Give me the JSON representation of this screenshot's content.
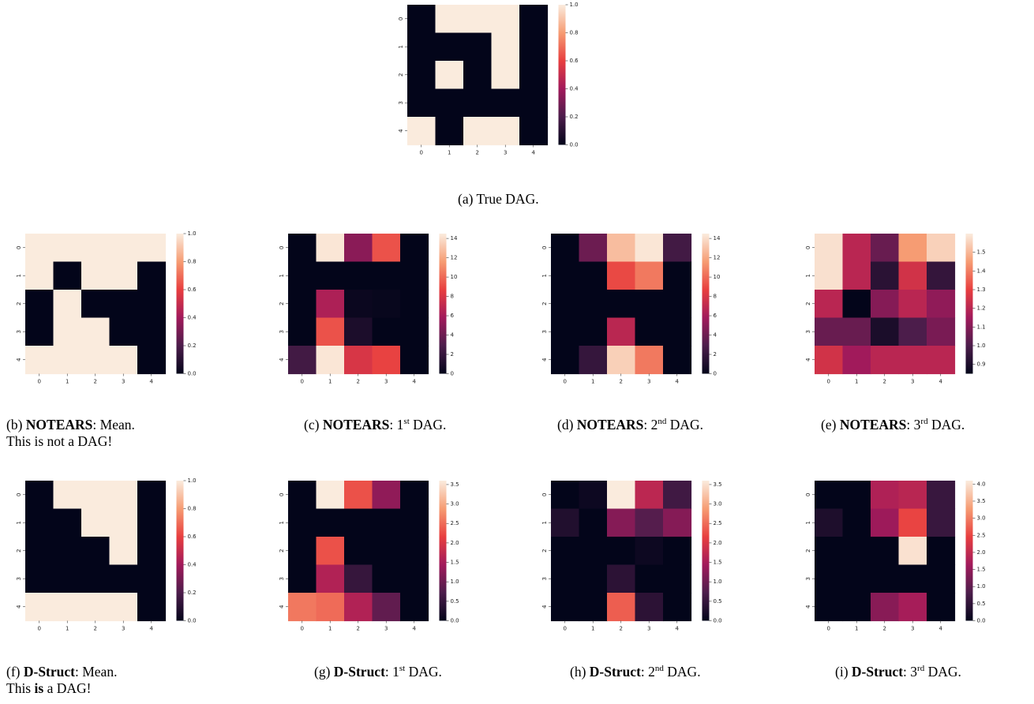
{
  "chart_data": [
    {
      "id": "a",
      "type": "heatmap",
      "caption": {
        "label": "(a)",
        "text": "True DAG."
      },
      "x": [
        "0",
        "1",
        "2",
        "3",
        "4"
      ],
      "y": [
        "0",
        "1",
        "2",
        "3",
        "4"
      ],
      "values": [
        [
          0,
          1,
          1,
          1,
          0
        ],
        [
          0,
          0,
          0,
          1,
          0
        ],
        [
          0,
          1,
          0,
          1,
          0
        ],
        [
          0,
          0,
          0,
          0,
          0
        ],
        [
          1,
          0,
          1,
          1,
          0
        ]
      ],
      "colorbar": {
        "min": 0,
        "max": 1,
        "ticks": [
          "0.0",
          "0.2",
          "0.4",
          "0.6",
          "0.8",
          "1.0"
        ]
      }
    },
    {
      "id": "b",
      "type": "heatmap",
      "caption": {
        "label": "(b)",
        "method": "NOTEARS",
        "text": ": Mean.",
        "line2": "This is not a DAG!"
      },
      "x": [
        "0",
        "1",
        "2",
        "3",
        "4"
      ],
      "y": [
        "0",
        "1",
        "2",
        "3",
        "4"
      ],
      "values": [
        [
          1,
          1,
          1,
          1,
          1
        ],
        [
          1,
          0,
          1,
          1,
          0
        ],
        [
          0,
          1,
          0,
          0,
          0
        ],
        [
          0,
          1,
          1,
          0,
          0
        ],
        [
          1,
          1,
          1,
          1,
          0
        ]
      ],
      "colorbar": {
        "min": 0,
        "max": 1,
        "ticks": [
          "0.0",
          "0.2",
          "0.4",
          "0.6",
          "0.8",
          "1.0"
        ]
      }
    },
    {
      "id": "c",
      "type": "heatmap",
      "caption": {
        "label": "(c)",
        "method": "NOTEARS",
        "pre": ": 1",
        "sup": "st",
        "post": " DAG."
      },
      "x": [
        "0",
        "1",
        "2",
        "3",
        "4"
      ],
      "y": [
        "0",
        "1",
        "2",
        "3",
        "4"
      ],
      "values": [
        [
          0,
          14.3,
          5,
          9.3,
          0
        ],
        [
          0,
          0,
          0,
          0,
          0
        ],
        [
          0,
          6.3,
          0.3,
          0.2,
          0
        ],
        [
          0,
          9.3,
          1,
          0,
          0
        ],
        [
          2.5,
          14.3,
          8,
          8.8,
          0
        ]
      ],
      "colorbar": {
        "min": 0,
        "max": 14.5,
        "ticks": [
          "0",
          "2",
          "4",
          "6",
          "8",
          "10",
          "12",
          "14"
        ]
      }
    },
    {
      "id": "d",
      "type": "heatmap",
      "caption": {
        "label": "(d)",
        "method": "NOTEARS",
        "pre": ": 2",
        "sup": "nd",
        "post": " DAG."
      },
      "x": [
        "0",
        "1",
        "2",
        "3",
        "4"
      ],
      "y": [
        "0",
        "1",
        "2",
        "3",
        "4"
      ],
      "values": [
        [
          0,
          4,
          12.8,
          14.3,
          2.5
        ],
        [
          0,
          0,
          9,
          10.5,
          0
        ],
        [
          0,
          0,
          0,
          0,
          0
        ],
        [
          0,
          0,
          6.8,
          0,
          0
        ],
        [
          0,
          2,
          13.5,
          10.5,
          0
        ]
      ],
      "colorbar": {
        "min": 0,
        "max": 14.5,
        "ticks": [
          "0",
          "2",
          "4",
          "6",
          "8",
          "10",
          "12",
          "14"
        ]
      }
    },
    {
      "id": "e",
      "type": "heatmap",
      "caption": {
        "label": "(e)",
        "method": "NOTEARS",
        "pre": ": 3",
        "sup": "rd",
        "post": " DAG."
      },
      "x": [
        "0",
        "1",
        "2",
        "3",
        "4"
      ],
      "y": [
        "0",
        "1",
        "2",
        "3",
        "4"
      ],
      "values": [
        [
          1.58,
          1.2,
          1.05,
          1.45,
          1.55
        ],
        [
          1.58,
          1.2,
          0.93,
          1.25,
          0.95
        ],
        [
          1.2,
          0.85,
          1.1,
          1.2,
          1.12
        ],
        [
          1.05,
          1.05,
          0.9,
          1.0,
          1.08
        ],
        [
          1.25,
          1.15,
          1.2,
          1.2,
          1.2
        ]
      ],
      "colorbar": {
        "min": 0.85,
        "max": 1.6,
        "ticks": [
          "0.9",
          "1.0",
          "1.1",
          "1.2",
          "1.3",
          "1.4",
          "1.5"
        ]
      }
    },
    {
      "id": "f",
      "type": "heatmap",
      "caption": {
        "label": "(f)",
        "method": "D-Struct",
        "text": ": Mean.",
        "line2_pre": "This ",
        "line2_bold": "is",
        "line2_post": " a DAG!"
      },
      "x": [
        "0",
        "1",
        "2",
        "3",
        "4"
      ],
      "y": [
        "0",
        "1",
        "2",
        "3",
        "4"
      ],
      "values": [
        [
          0,
          1,
          1,
          1,
          0
        ],
        [
          0,
          0,
          1,
          1,
          0
        ],
        [
          0,
          0,
          0,
          1,
          0
        ],
        [
          0,
          0,
          0,
          0,
          0
        ],
        [
          1,
          1,
          1,
          1,
          0
        ]
      ],
      "colorbar": {
        "min": 0,
        "max": 1,
        "ticks": [
          "0.0",
          "0.2",
          "0.4",
          "0.6",
          "0.8",
          "1.0"
        ]
      }
    },
    {
      "id": "g",
      "type": "heatmap",
      "caption": {
        "label": "(g)",
        "method": "D-Struct",
        "pre": ": 1",
        "sup": "st",
        "post": " DAG."
      },
      "x": [
        "0",
        "1",
        "2",
        "3",
        "4"
      ],
      "y": [
        "0",
        "1",
        "2",
        "3",
        "4"
      ],
      "values": [
        [
          0,
          3.6,
          2.3,
          1.3,
          0
        ],
        [
          0,
          0,
          0,
          0,
          0
        ],
        [
          0,
          2.3,
          0,
          0,
          0
        ],
        [
          0,
          1.6,
          0.5,
          0,
          0
        ],
        [
          2.6,
          2.5,
          1.6,
          0.9,
          0
        ]
      ],
      "colorbar": {
        "min": 0,
        "max": 3.6,
        "ticks": [
          "0.0",
          "0.5",
          "1.0",
          "1.5",
          "2.0",
          "2.5",
          "3.0",
          "3.5"
        ]
      }
    },
    {
      "id": "h",
      "type": "heatmap",
      "caption": {
        "label": "(h)",
        "method": "D-Struct",
        "pre": ": 2",
        "sup": "nd",
        "post": " DAG."
      },
      "x": [
        "0",
        "1",
        "2",
        "3",
        "4"
      ],
      "y": [
        "0",
        "1",
        "2",
        "3",
        "4"
      ],
      "values": [
        [
          0,
          0.1,
          3.6,
          1.7,
          0.6
        ],
        [
          0.3,
          0,
          1.2,
          0.8,
          1.2
        ],
        [
          0,
          0,
          0,
          0.1,
          0
        ],
        [
          0,
          0,
          0.4,
          0,
          0
        ],
        [
          0,
          0,
          2.4,
          0.4,
          0
        ]
      ],
      "colorbar": {
        "min": 0,
        "max": 3.6,
        "ticks": [
          "0.0",
          "0.5",
          "1.0",
          "1.5",
          "2.0",
          "2.5",
          "3.0",
          "3.5"
        ]
      }
    },
    {
      "id": "i",
      "type": "heatmap",
      "caption": {
        "label": "(i)",
        "method": "D-Struct",
        "pre": ": 3",
        "sup": "rd",
        "post": " DAG."
      },
      "x": [
        "0",
        "1",
        "2",
        "3",
        "4"
      ],
      "y": [
        "0",
        "1",
        "2",
        "3",
        "4"
      ],
      "values": [
        [
          0,
          0,
          1.8,
          1.9,
          0.6
        ],
        [
          0.3,
          0,
          1.6,
          2.5,
          0.6
        ],
        [
          0,
          0,
          0,
          4.0,
          0
        ],
        [
          0,
          0,
          0,
          0,
          0
        ],
        [
          0,
          0,
          1.4,
          1.7,
          0
        ]
      ],
      "colorbar": {
        "min": 0,
        "max": 4.1,
        "ticks": [
          "0.0",
          "0.5",
          "1.0",
          "1.5",
          "2.0",
          "2.5",
          "3.0",
          "3.5",
          "4.0"
        ]
      }
    }
  ],
  "colors": {
    "colormap": [
      "#03051a",
      "#4c1d4b",
      "#a11a5b",
      "#e83f3f",
      "#f69c73",
      "#faebdd"
    ]
  }
}
